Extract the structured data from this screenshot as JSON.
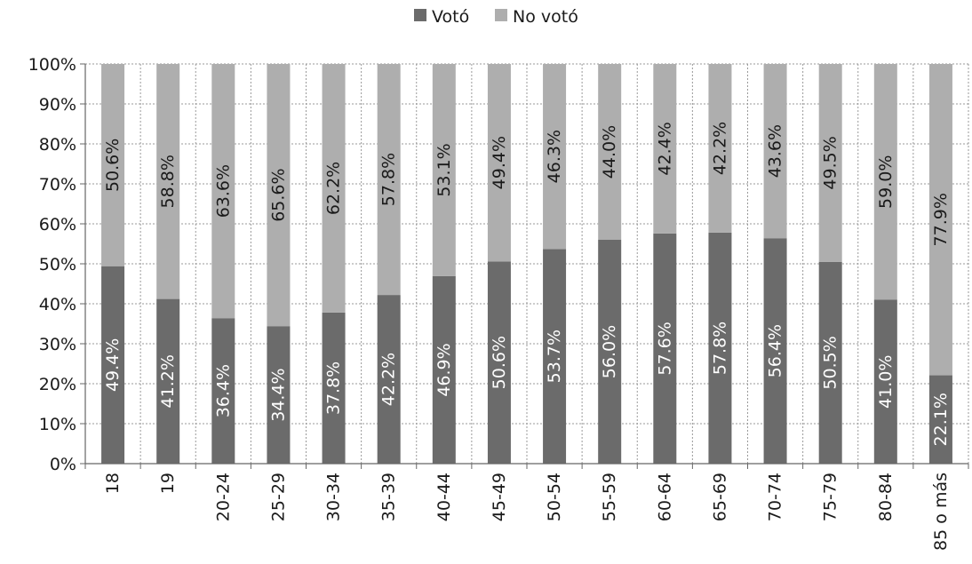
{
  "chart_data": {
    "type": "bar",
    "stacked": "percent",
    "categories": [
      "18",
      "19",
      "20-24",
      "25-29",
      "30-34",
      "35-39",
      "40-44",
      "45-49",
      "50-54",
      "55-59",
      "60-64",
      "65-69",
      "70-74",
      "75-79",
      "80-84",
      "85 o más"
    ],
    "series": [
      {
        "name": "Votó",
        "color": "#6b6b6b",
        "values": [
          49.4,
          41.2,
          36.4,
          34.4,
          37.8,
          42.2,
          46.9,
          50.6,
          53.7,
          56.0,
          57.6,
          57.8,
          56.4,
          50.5,
          41.0,
          22.1
        ],
        "labels": [
          "49.4%",
          "41.2%",
          "36.4%",
          "34.4%",
          "37.8%",
          "42.2%",
          "46.9%",
          "50.6%",
          "53.7%",
          "56.0%",
          "57.6%",
          "57.8%",
          "56.4%",
          "50.5%",
          "41.0%",
          "22.1%"
        ]
      },
      {
        "name": "No votó",
        "color": "#aeaeae",
        "values": [
          50.6,
          58.8,
          63.6,
          65.6,
          62.2,
          57.8,
          53.1,
          49.4,
          46.3,
          44.0,
          42.4,
          42.2,
          43.6,
          49.5,
          59.0,
          77.9
        ],
        "labels": [
          "50.6%",
          "58.8%",
          "63.6%",
          "65.6%",
          "62.2%",
          "57.8%",
          "53.1%",
          "49.4%",
          "46.3%",
          "44.0%",
          "42.4%",
          "42.2%",
          "43.6%",
          "49.5%",
          "59.0%",
          "77.9%"
        ]
      }
    ],
    "yticks": [
      "0%",
      "10%",
      "20%",
      "30%",
      "40%",
      "50%",
      "60%",
      "70%",
      "80%",
      "90%",
      "100%"
    ],
    "ylim": [
      0,
      100
    ],
    "grid": true,
    "legend": "top-center",
    "title": "",
    "xlabel": "",
    "ylabel": ""
  }
}
